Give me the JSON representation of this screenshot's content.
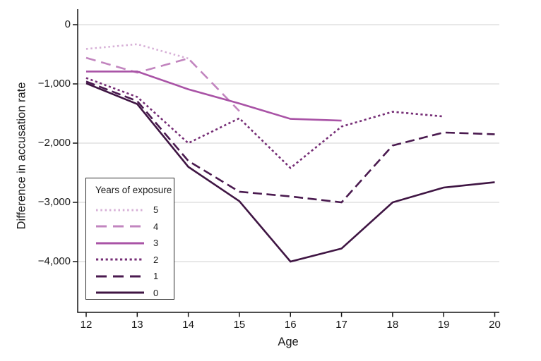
{
  "chart_data": {
    "type": "line",
    "title": "",
    "xlabel": "Age",
    "ylabel": "Difference in accusation rate",
    "x_ticks": [
      12,
      13,
      14,
      15,
      16,
      17,
      18,
      19,
      20
    ],
    "y_ticks": [
      {
        "value": 0,
        "label": "0"
      },
      {
        "value": -1000,
        "label": "−1,000"
      },
      {
        "value": -2000,
        "label": "−2,000"
      },
      {
        "value": -3000,
        "label": "−3,000"
      },
      {
        "value": -4000,
        "label": "−4,000"
      }
    ],
    "xlim": [
      11.83,
      20.09
    ],
    "ylim": [
      -4860,
      260
    ],
    "grid": "horizontal",
    "grid_color": "#d2d2d2",
    "axis_color": "#141414",
    "legend": {
      "title": "Years of exposure",
      "position": "lower-left"
    },
    "series": [
      {
        "name": "5",
        "style": "dotted",
        "color": "#d7b0d7",
        "dash": "2.5 3.8",
        "x": [
          12,
          13,
          14
        ],
        "y": [
          -410,
          -330,
          -570
        ]
      },
      {
        "name": "4",
        "style": "long-dash",
        "color": "#c285bf",
        "dash": "14 8",
        "x": [
          12,
          13,
          14,
          15
        ],
        "y": [
          -560,
          -810,
          -570,
          -1460
        ]
      },
      {
        "name": "3",
        "style": "solid",
        "color": "#a953a6",
        "dash": "",
        "x": [
          12,
          13,
          14,
          15,
          16,
          17
        ],
        "y": [
          -790,
          -790,
          -1090,
          -1330,
          -1590,
          -1620
        ]
      },
      {
        "name": "2",
        "style": "dotted",
        "color": "#762e76",
        "dash": "3.2 3.6",
        "x": [
          12,
          13,
          14,
          15,
          16,
          17,
          18,
          19
        ],
        "y": [
          -900,
          -1220,
          -2000,
          -1580,
          -2420,
          -1720,
          -1470,
          -1550
        ]
      },
      {
        "name": "1",
        "style": "long-dash",
        "color": "#4a1a4f",
        "dash": "13 6.5",
        "x": [
          12,
          13,
          14,
          15,
          16,
          17,
          18,
          19,
          20
        ],
        "y": [
          -960,
          -1290,
          -2300,
          -2820,
          -2900,
          -3000,
          -2040,
          -1820,
          -1850
        ]
      },
      {
        "name": "0",
        "style": "solid",
        "color": "#3f1543",
        "dash": "",
        "x": [
          12,
          13,
          14,
          15,
          16,
          17,
          18,
          19,
          20
        ],
        "y": [
          -990,
          -1340,
          -2400,
          -2980,
          -4000,
          -3780,
          -3000,
          -2750,
          -2660
        ]
      }
    ]
  }
}
